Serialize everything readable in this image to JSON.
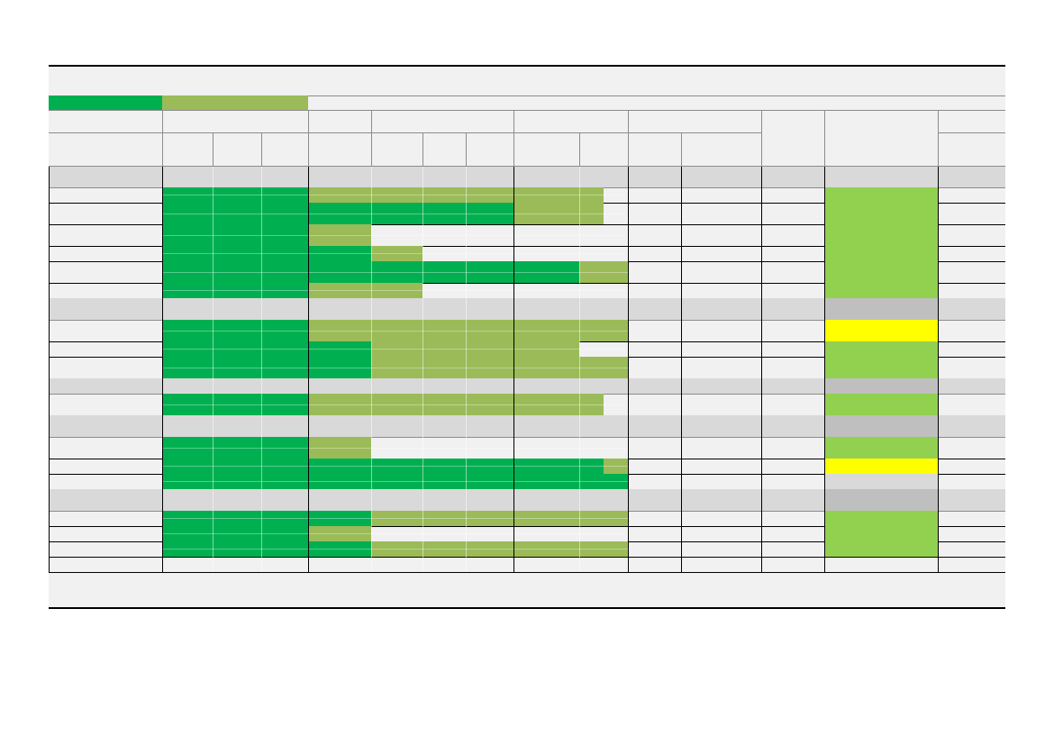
{
  "palette": {
    "background": "#f1f1f1",
    "complete": "#00b050",
    "in_progress": "#9bbb59",
    "status_on_track": "#92d050",
    "status_attention": "#ffff00",
    "status_na": "#d9d9d9",
    "status_na_section": "#bfbfbf",
    "section_band": "#d9d9d9",
    "cell_grid_light": "#ffffff",
    "grid_dark": "#000000"
  },
  "legend": [
    {
      "swatch": "complete"
    },
    {
      "swatch": "in_progress"
    }
  ],
  "timeline_columns": [
    "c1",
    "c2",
    "c3",
    "c4",
    "c5",
    "c6",
    "c7",
    "c8",
    "c9",
    "c10",
    "c11"
  ],
  "rows": [
    {
      "kind": "section"
    },
    {
      "kind": "item",
      "segments": [
        {
          "to": 3,
          "color": "complete"
        },
        {
          "to": 8.5,
          "color": "in_progress"
        }
      ],
      "status": "status_on_track"
    },
    {
      "kind": "item",
      "segments": [
        {
          "to": 7,
          "color": "complete"
        },
        {
          "to": 8.5,
          "color": "in_progress"
        }
      ],
      "status": "status_on_track"
    },
    {
      "kind": "item",
      "segments": [
        {
          "to": 3,
          "color": "complete"
        },
        {
          "to": 4,
          "color": "in_progress"
        }
      ],
      "status": "status_on_track"
    },
    {
      "kind": "item",
      "segments": [
        {
          "to": 4,
          "color": "complete"
        },
        {
          "to": 5,
          "color": "in_progress"
        }
      ],
      "status": "status_on_track"
    },
    {
      "kind": "item",
      "segments": [
        {
          "to": 8,
          "color": "complete"
        },
        {
          "to": 9.3,
          "color": "in_progress"
        }
      ],
      "status": "status_on_track"
    },
    {
      "kind": "item",
      "segments": [
        {
          "to": 3,
          "color": "complete"
        },
        {
          "to": 5,
          "color": "in_progress"
        }
      ],
      "status": "status_on_track"
    },
    {
      "kind": "section",
      "status": "status_na_section"
    },
    {
      "kind": "item",
      "segments": [
        {
          "to": 3,
          "color": "complete"
        },
        {
          "to": 9.3,
          "color": "in_progress"
        }
      ],
      "status": "status_attention"
    },
    {
      "kind": "item",
      "segments": [
        {
          "to": 4,
          "color": "complete"
        },
        {
          "to": 8,
          "color": "in_progress"
        }
      ],
      "status": "status_on_track"
    },
    {
      "kind": "item",
      "segments": [
        {
          "to": 4,
          "color": "complete"
        },
        {
          "to": 9.3,
          "color": "in_progress"
        }
      ],
      "status": "status_on_track"
    },
    {
      "kind": "section",
      "status": "status_na_section"
    },
    {
      "kind": "item",
      "segments": [
        {
          "to": 3,
          "color": "complete"
        },
        {
          "to": 8.5,
          "color": "in_progress"
        }
      ],
      "status": "status_on_track"
    },
    {
      "kind": "section",
      "status": "status_na_section"
    },
    {
      "kind": "item",
      "segments": [
        {
          "to": 3,
          "color": "complete"
        },
        {
          "to": 4,
          "color": "in_progress"
        }
      ],
      "status": "status_on_track"
    },
    {
      "kind": "item",
      "segments": [
        {
          "to": 8.5,
          "color": "complete"
        },
        {
          "to": 9.3,
          "color": "in_progress"
        }
      ],
      "status": "status_attention"
    },
    {
      "kind": "item",
      "segments": [
        {
          "to": 9.3,
          "color": "complete"
        }
      ],
      "status": "status_na"
    },
    {
      "kind": "section",
      "status": "status_na_section"
    },
    {
      "kind": "item",
      "segments": [
        {
          "to": 4,
          "color": "complete"
        },
        {
          "to": 9.3,
          "color": "in_progress"
        }
      ],
      "status": "status_on_track"
    },
    {
      "kind": "item",
      "segments": [
        {
          "to": 3,
          "color": "complete"
        },
        {
          "to": 4,
          "color": "in_progress"
        }
      ],
      "status": "status_on_track"
    },
    {
      "kind": "item",
      "segments": [
        {
          "to": 4,
          "color": "complete"
        },
        {
          "to": 9.3,
          "color": "in_progress"
        }
      ],
      "status": "status_on_track"
    },
    {
      "kind": "blank"
    }
  ]
}
